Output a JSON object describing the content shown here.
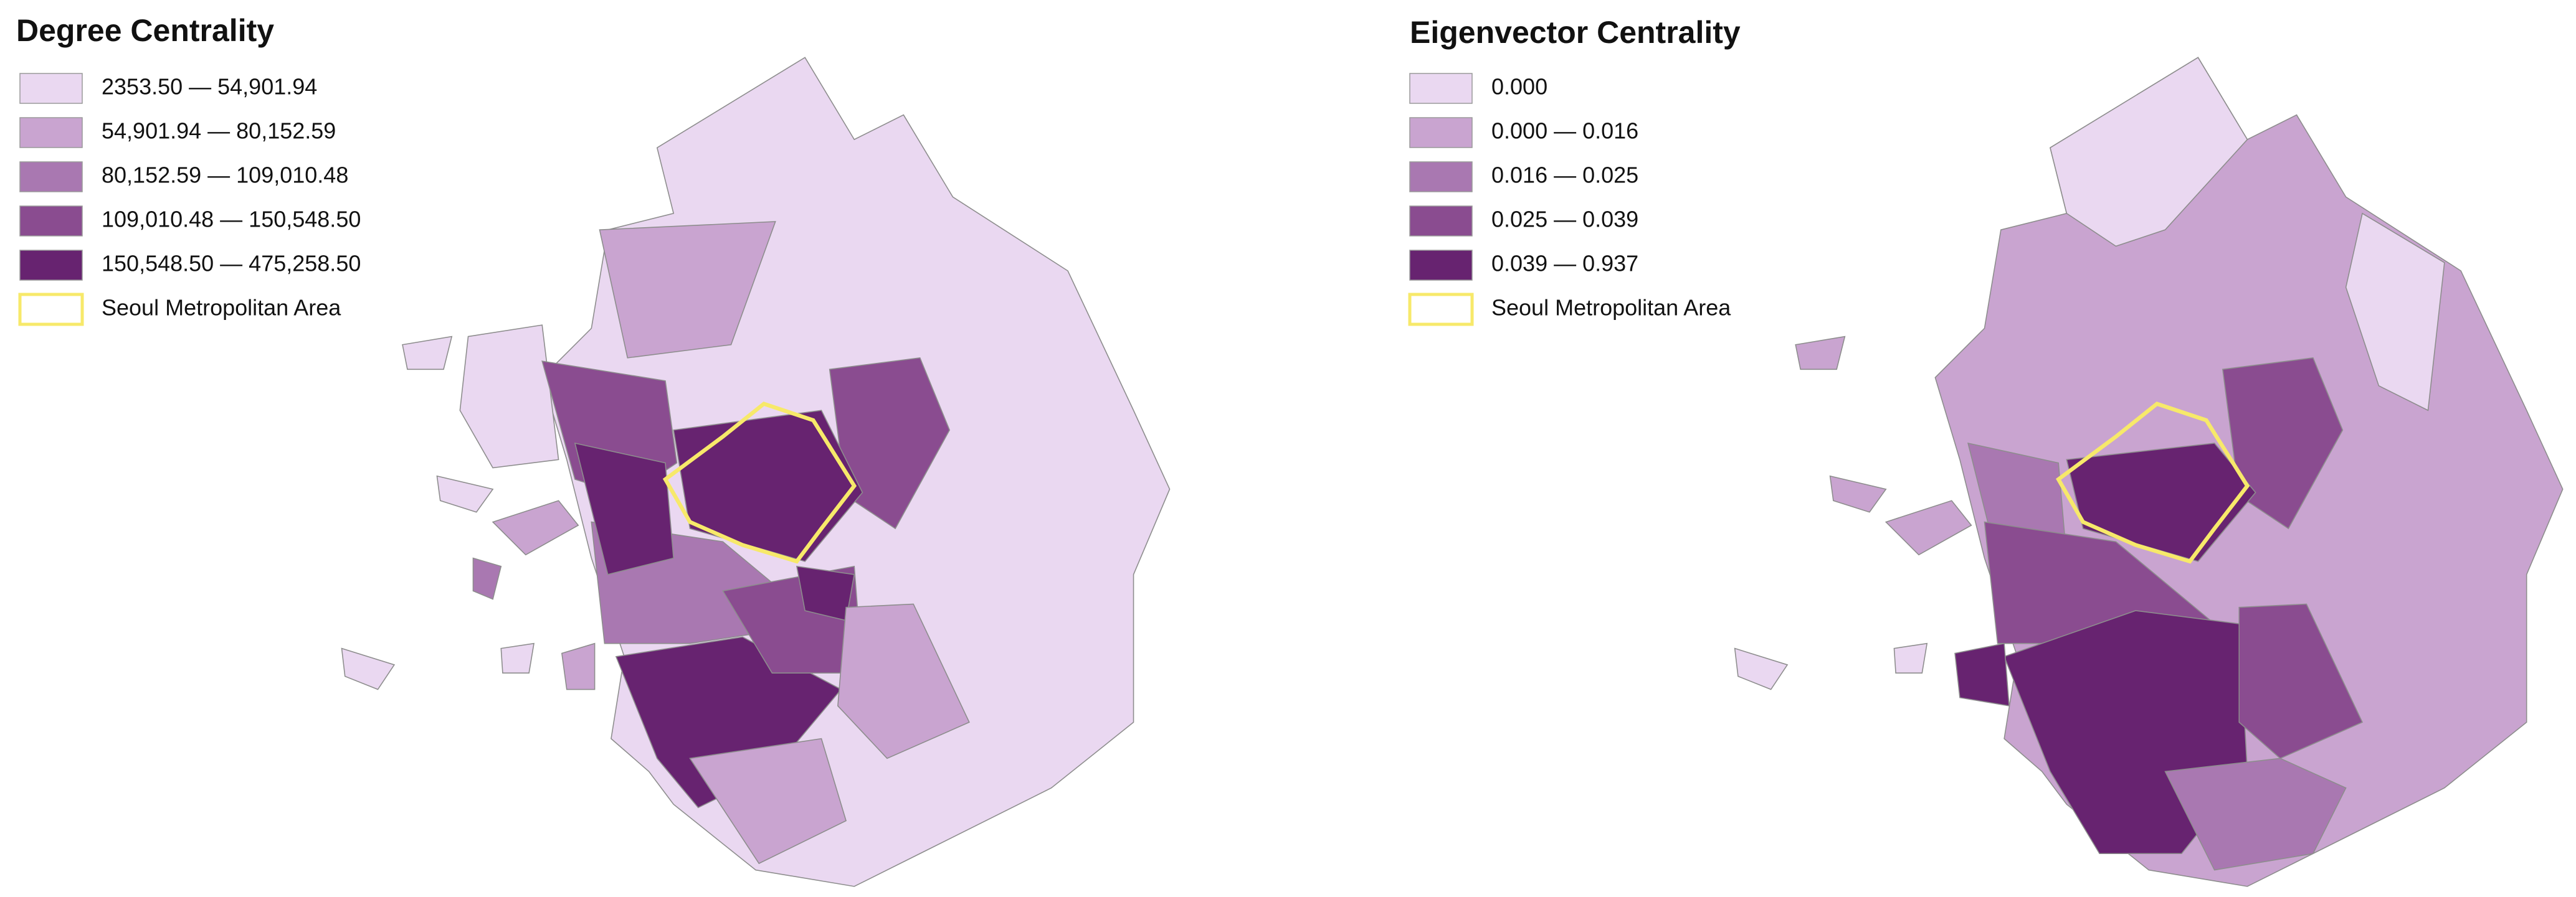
{
  "maps": [
    {
      "title": "Degree Centrality",
      "legend": [
        {
          "label": "2353.50 — 54,901.94",
          "color": "#ead8f1"
        },
        {
          "label": "54,901.94 — 80,152.59",
          "color": "#c9a4d0"
        },
        {
          "label": "80,152.59 — 109,010.48",
          "color": "#a978b1"
        },
        {
          "label": "109,010.48 — 150,548.50",
          "color": "#8a4c90"
        },
        {
          "label": "150,548.50 — 475,258.50",
          "color": "#672370"
        },
        {
          "label": "Seoul Metropolitan Area",
          "color": "#f7e96a"
        }
      ]
    },
    {
      "title": "Eigenvector Centrality",
      "legend": [
        {
          "label": "0.000",
          "color": "#ead8f1"
        },
        {
          "label": "0.000 — 0.016",
          "color": "#c9a4d0"
        },
        {
          "label": "0.016 — 0.025",
          "color": "#a978b1"
        },
        {
          "label": "0.025 — 0.039",
          "color": "#8a4c90"
        },
        {
          "label": "0.039 — 0.937",
          "color": "#672370"
        },
        {
          "label": "Seoul Metropolitan Area",
          "color": "#f7e96a"
        }
      ]
    }
  ]
}
